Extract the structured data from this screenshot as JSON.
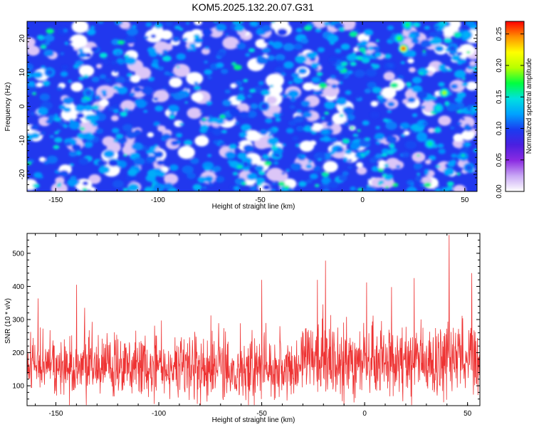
{
  "title": "KOM5.2025.132.20.07.G31",
  "chart_data": [
    {
      "type": "heatmap",
      "xlabel": "Height of straight line (km)",
      "ylabel": "Frequency (Hz)",
      "xlim": [
        -164,
        56
      ],
      "ylim": [
        -25,
        25
      ],
      "x_ticks": [
        -150,
        -100,
        -50,
        0,
        50
      ],
      "y_ticks": [
        -20,
        -10,
        0,
        10,
        20
      ],
      "colorbar": {
        "label": "Normalized spectral amplitude",
        "range": [
          0,
          0.27
        ],
        "ticks": [
          0.0,
          0.05,
          0.1,
          0.15,
          0.2,
          0.25
        ],
        "tick_labels": [
          "0.00",
          "0.05",
          "0.10",
          "0.15",
          "0.20",
          "0.25"
        ],
        "colormap": [
          "#ffffff",
          "#c9a8f5",
          "#8b2be2",
          "#4b1fe0",
          "#1a3cf0",
          "#00a2ff",
          "#00e0e0",
          "#00ff40",
          "#b8ff00",
          "#ffff00",
          "#ff9000",
          "#ff0000"
        ]
      },
      "background_level": 0.06,
      "peaks": [
        {
          "x": 20,
          "y": 17,
          "value": 0.27
        },
        {
          "x": 18,
          "y": 20,
          "value": 0.18
        },
        {
          "x": 22,
          "y": 24,
          "value": 0.17
        },
        {
          "x": 40,
          "y": 4,
          "value": 0.2
        },
        {
          "x": 37,
          "y": -0.5,
          "value": 0.15
        },
        {
          "x": 33,
          "y": -11,
          "value": 0.16
        },
        {
          "x": 29,
          "y": -9,
          "value": 0.12
        },
        {
          "x": 51,
          "y": 21,
          "value": 0.13
        },
        {
          "x": 44,
          "y": 17,
          "value": 0.1
        },
        {
          "x": 24,
          "y": -25,
          "value": 0.12
        },
        {
          "x": 52,
          "y": -18,
          "value": 0.1
        },
        {
          "x": -100,
          "y": -24,
          "value": 0.11
        },
        {
          "x": -48,
          "y": 0,
          "value": 0.09
        },
        {
          "x": -134,
          "y": 4,
          "value": 0.1
        },
        {
          "x": -153,
          "y": 10,
          "value": 0.1
        }
      ]
    },
    {
      "type": "line",
      "xlabel": "Height of straight line (km)",
      "ylabel": "SNR (10 * v/v)",
      "xlim": [
        -164,
        56
      ],
      "ylim": [
        40,
        560
      ],
      "x_ticks": [
        -150,
        -100,
        -50,
        0,
        50
      ],
      "y_ticks": [
        100,
        200,
        300,
        400,
        500
      ],
      "color": "#ee3333",
      "series": [
        {
          "points": 1400,
          "baseline": 150,
          "spread": 60,
          "peaks": [
            {
              "x": 41,
              "value": 555
            },
            {
              "x": -19,
              "value": 478
            },
            {
              "x": -140,
              "value": 405
            },
            {
              "x": -50,
              "value": 420
            },
            {
              "x": 52,
              "value": 440
            },
            {
              "x": 24,
              "value": 425
            },
            {
              "x": -23,
              "value": 420
            },
            {
              "x": 13,
              "value": 398
            },
            {
              "x": 1,
              "value": 412
            }
          ]
        }
      ]
    }
  ]
}
